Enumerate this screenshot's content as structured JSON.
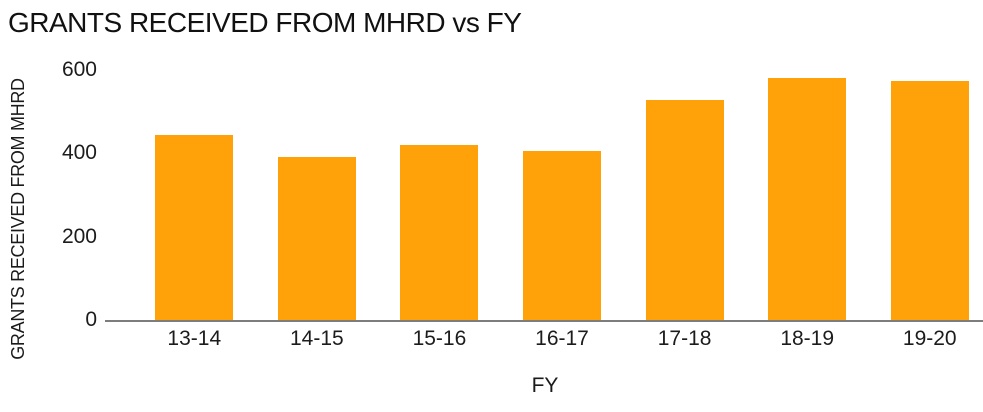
{
  "chart_data": {
    "type": "bar",
    "title": "GRANTS RECEIVED FROM MHRD vs FY",
    "xlabel": "FY",
    "ylabel": "GRANTS RECEIVED FROM MHRD",
    "categories": [
      "13-14",
      "14-15",
      "15-16",
      "16-17",
      "17-18",
      "18-19",
      "19-20"
    ],
    "values": [
      445,
      392,
      420,
      406,
      527,
      580,
      573
    ],
    "ylim": [
      0,
      600
    ],
    "yticks": [
      0,
      200,
      400,
      600
    ],
    "grid": false,
    "legend": false,
    "colors": {
      "bar": "#ffa20a",
      "axis_line": "#7d7d7d",
      "text": "#1a1a1a",
      "background": "#ffffff"
    }
  }
}
